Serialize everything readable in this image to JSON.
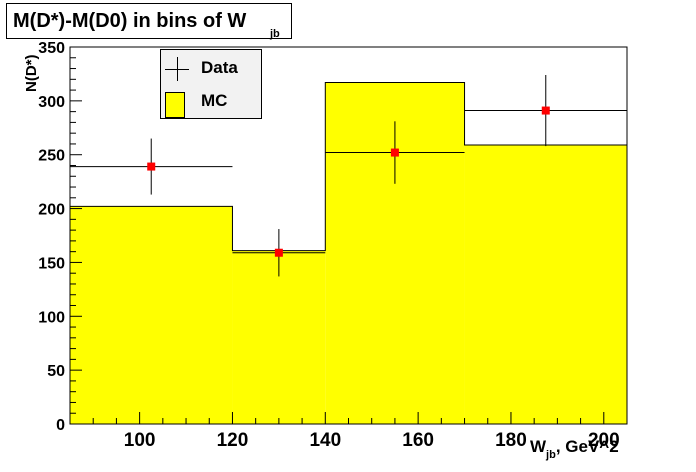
{
  "title": {
    "main": "M(D*)-M(D0) in bins of W",
    "sub": "jb"
  },
  "chart_data": {
    "type": "bar",
    "title": "M(D*)-M(D0) in bins of W_jb",
    "xlabel": "W_jb, GeV^2",
    "ylabel": "N(D*)",
    "xlim": [
      85,
      205
    ],
    "ylim": [
      0,
      350
    ],
    "x_ticks": [
      100,
      120,
      140,
      160,
      180,
      200
    ],
    "y_ticks": [
      0,
      50,
      100,
      150,
      200,
      250,
      300,
      350
    ],
    "legend": [
      "Data",
      "MC"
    ],
    "legend_position": "top-left",
    "mc": {
      "name": "MC",
      "color": "#ffff00",
      "bins": [
        {
          "x_low": 85,
          "x_high": 120,
          "value": 202
        },
        {
          "x_low": 120,
          "x_high": 140,
          "value": 161
        },
        {
          "x_low": 140,
          "x_high": 170,
          "value": 317
        },
        {
          "x_low": 170,
          "x_high": 205,
          "value": 259
        }
      ]
    },
    "data": {
      "name": "Data",
      "marker_color": "#ff0000",
      "points": [
        {
          "x": 102.5,
          "x_low": 85,
          "x_high": 120,
          "y": 239,
          "y_err": 26
        },
        {
          "x": 130,
          "x_low": 120,
          "x_high": 140,
          "y": 159,
          "y_err": 22
        },
        {
          "x": 155,
          "x_low": 140,
          "x_high": 170,
          "y": 252,
          "y_err": 29
        },
        {
          "x": 187.5,
          "x_low": 170,
          "x_high": 205,
          "y": 291,
          "y_err": 33
        }
      ]
    }
  },
  "axis_text": {
    "xlabel_main": "W",
    "xlabel_sub": "jb",
    "xlabel_rest": ", GeV^2",
    "ylabel": "N(D*)"
  }
}
